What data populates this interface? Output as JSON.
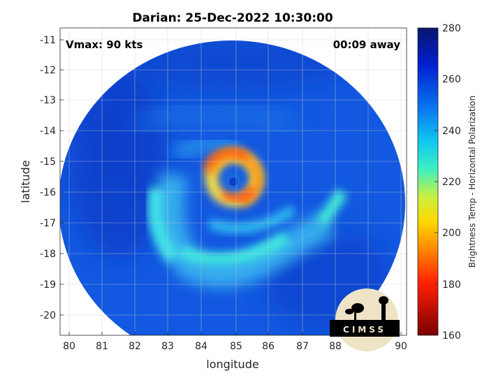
{
  "title": "Darian: 25-Dec-2022 10:30:00",
  "annotations": {
    "vmax": "Vmax: 90 kts",
    "away": "00:09 away"
  },
  "axes": {
    "xlabel": "longitude",
    "ylabel": "latitude",
    "xticks": [
      "80",
      "81",
      "82",
      "83",
      "84",
      "85",
      "86",
      "87",
      "88",
      "89",
      "90"
    ],
    "yticks": [
      "-11",
      "-12",
      "-13",
      "-14",
      "-15",
      "-16",
      "-17",
      "-18",
      "-19",
      "-20"
    ]
  },
  "colorbar": {
    "label": "Brightness Temp - Horizontal Polarization",
    "ticks": [
      "280",
      "260",
      "240",
      "220",
      "200",
      "180",
      "160"
    ],
    "range": [
      160,
      280
    ]
  },
  "logo": {
    "text": "CIMSS"
  },
  "chart_data": {
    "type": "heatmap",
    "title": "Darian: 25-Dec-2022 10:30:00",
    "xlabel": "longitude",
    "ylabel": "latitude",
    "xlim": [
      79.8,
      90.2
    ],
    "ylim": [
      -20.6,
      -10.7
    ],
    "grid": true,
    "colorbar": {
      "label": "Brightness Temp - Horizontal Polarization",
      "min": 160,
      "max": 280
    },
    "storm_center": {
      "lon": 84.9,
      "lat": -15.6
    },
    "annotations": [
      "Vmax: 90 kts",
      "00:09 away"
    ]
  }
}
